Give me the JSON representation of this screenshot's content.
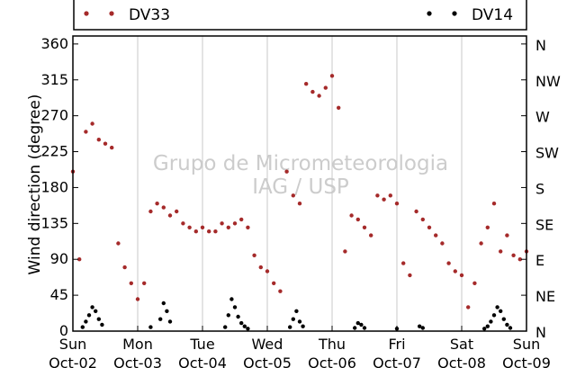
{
  "chart_data": {
    "type": "scatter",
    "ylabel": "Wind direction (degree)",
    "ylim": [
      0,
      370
    ],
    "xlim": [
      "2011-10-02 00:00",
      "2011-10-09 00:00"
    ],
    "y_ticks": [
      0,
      45,
      90,
      135,
      180,
      225,
      270,
      315,
      360
    ],
    "y_tick_labels": [
      "0",
      "45",
      "90",
      "135",
      "180",
      "225",
      "270",
      "315",
      "360"
    ],
    "y2_tick_labels": [
      "N",
      "NE",
      "E",
      "SE",
      "S",
      "SW",
      "W",
      "NW",
      "N"
    ],
    "x_tick_labels": [
      {
        "day": "Sun",
        "date": "Oct-02"
      },
      {
        "day": "Mon",
        "date": "Oct-03"
      },
      {
        "day": "Tue",
        "date": "Oct-04"
      },
      {
        "day": "Wed",
        "date": "Oct-05"
      },
      {
        "day": "Thu",
        "date": "Oct-06"
      },
      {
        "day": "Fri",
        "date": "Oct-07"
      },
      {
        "day": "Sat",
        "date": "Oct-08"
      },
      {
        "day": "Sun",
        "date": "Oct-09"
      }
    ],
    "grid": "vertical day separators",
    "legend_position": "top",
    "watermark": [
      "Grupo de Micrometeorologia",
      "IAG / USP"
    ],
    "series": [
      {
        "name": "DV33",
        "color": "#a52a2a",
        "x_days": [
          0.0,
          0.1,
          0.2,
          0.3,
          0.4,
          0.5,
          0.6,
          0.7,
          0.8,
          0.9,
          1.0,
          1.1,
          1.2,
          1.3,
          1.4,
          1.5,
          1.6,
          1.7,
          1.8,
          1.9,
          2.0,
          2.1,
          2.2,
          2.3,
          2.4,
          2.5,
          2.6,
          2.7,
          2.8,
          2.9,
          3.0,
          3.1,
          3.2,
          3.3,
          3.4,
          3.5,
          3.6,
          3.7,
          3.8,
          3.9,
          4.0,
          4.1,
          4.2,
          4.3,
          4.4,
          4.5,
          4.6,
          4.7,
          4.8,
          4.9,
          5.0,
          5.1,
          5.2,
          5.3,
          5.4,
          5.5,
          5.6,
          5.7,
          5.8,
          5.9,
          6.0,
          6.1,
          6.2,
          6.3,
          6.4,
          6.5,
          6.6,
          6.7,
          6.8,
          6.9,
          7.0
        ],
        "y": [
          200,
          90,
          250,
          260,
          240,
          235,
          230,
          110,
          80,
          60,
          40,
          60,
          150,
          160,
          155,
          145,
          150,
          135,
          130,
          125,
          130,
          125,
          125,
          135,
          130,
          135,
          140,
          130,
          95,
          80,
          75,
          60,
          50,
          200,
          170,
          160,
          310,
          300,
          295,
          305,
          320,
          280,
          100,
          145,
          140,
          130,
          120,
          170,
          165,
          170,
          160,
          85,
          70,
          150,
          140,
          130,
          120,
          110,
          85,
          75,
          70,
          30,
          60,
          110,
          130,
          160,
          100,
          120,
          95,
          90,
          100
        ]
      },
      {
        "name": "DV14",
        "color": "#000000",
        "x_days": [
          0.15,
          0.2,
          0.25,
          0.3,
          0.35,
          0.4,
          0.45,
          1.2,
          1.35,
          1.4,
          1.45,
          1.5,
          2.35,
          2.4,
          2.45,
          2.5,
          2.55,
          2.6,
          2.65,
          2.7,
          3.35,
          3.4,
          3.45,
          3.5,
          3.55,
          4.35,
          4.4,
          4.45,
          4.5,
          5.0,
          5.35,
          5.4,
          6.35,
          6.4,
          6.45,
          6.5,
          6.55,
          6.6,
          6.65,
          6.7,
          6.75
        ],
        "y": [
          5,
          12,
          20,
          30,
          25,
          15,
          8,
          5,
          15,
          35,
          25,
          12,
          5,
          20,
          40,
          30,
          18,
          10,
          6,
          3,
          5,
          15,
          25,
          12,
          6,
          4,
          10,
          8,
          4,
          3,
          6,
          4,
          3,
          6,
          12,
          20,
          30,
          25,
          15,
          8,
          4
        ]
      }
    ]
  }
}
